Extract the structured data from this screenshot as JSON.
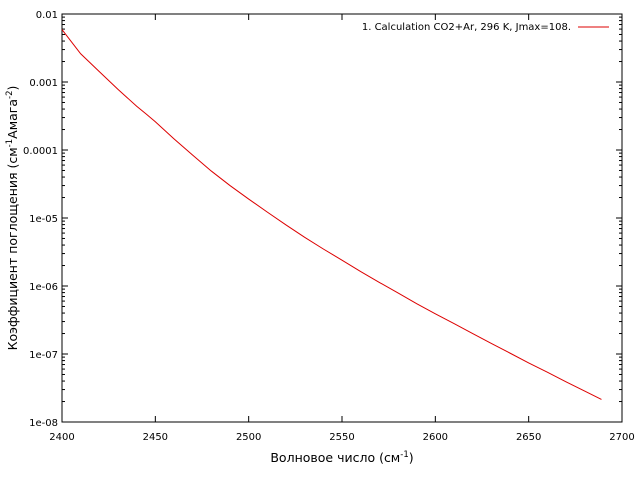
{
  "chart_data": {
    "type": "line",
    "xlabel_main": "Волновое число (см",
    "xlabel_sup": "-1",
    "xlabel_end": ")",
    "ylabel_main": "Коэффициент поглощения (см",
    "ylabel_sup1": "-1",
    "ylabel_mid": "Амага",
    "ylabel_sup2": "-2",
    "ylabel_end": ")",
    "xlim": [
      2400,
      2700
    ],
    "ylim": [
      1e-08,
      0.01
    ],
    "yscale": "log",
    "grid": false,
    "legend_position": "top-right",
    "x_ticks": [
      2400,
      2450,
      2500,
      2550,
      2600,
      2650,
      2700
    ],
    "x_tick_labels": [
      "2400",
      "2450",
      "2500",
      "2550",
      "2600",
      "2650",
      "2700"
    ],
    "y_ticks": [
      1e-08,
      1e-07,
      1e-06,
      1e-05,
      0.0001,
      0.001,
      0.01
    ],
    "y_tick_labels": [
      "1e-08",
      "1e-07",
      "1e-06",
      "1e-05",
      "0.0001",
      "0.001",
      "0.01"
    ],
    "series": [
      {
        "name": "1. Calculation  CO2+Ar, 296 K, Jmax=108.",
        "color": "#dd0000",
        "x": [
          2400,
          2410,
          2420,
          2430,
          2440,
          2445,
          2450,
          2460,
          2470,
          2480,
          2490,
          2500,
          2510,
          2520,
          2530,
          2540,
          2550,
          2560,
          2570,
          2580,
          2590,
          2600,
          2610,
          2620,
          2630,
          2640,
          2650,
          2660,
          2670,
          2680,
          2689
        ],
        "y": [
          0.0059,
          0.0026,
          0.00142,
          0.00078,
          0.00044,
          0.00034,
          0.00026,
          0.000146,
          8.4e-05,
          4.9e-05,
          3e-05,
          1.9e-05,
          1.22e-05,
          7.9e-06,
          5.2e-06,
          3.5e-06,
          2.4e-06,
          1.63e-06,
          1.13e-06,
          7.9e-07,
          5.5e-07,
          3.9e-07,
          2.8e-07,
          2e-07,
          1.43e-07,
          1.03e-07,
          7.4e-08,
          5.4e-08,
          3.9e-08,
          2.85e-08,
          2.15e-08
        ]
      }
    ]
  }
}
